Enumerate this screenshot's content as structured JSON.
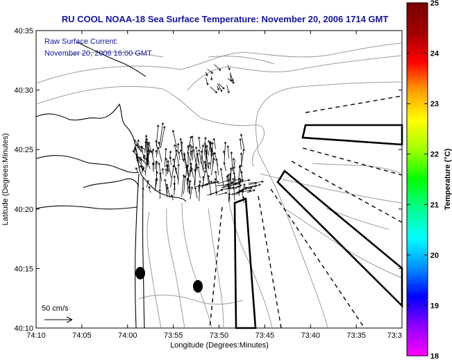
{
  "title": "RU COOL  NOAA-18  Sea Surface Temperature:  November 20, 2006 1714 GMT",
  "annotation": {
    "line1": "Raw Surface Current:",
    "line2": "November 20, 2006 16:00 GMT"
  },
  "scale_label": "50 cm/s",
  "xlabel": "Longitude (Degrees:Minutes)",
  "ylabel": "Latitude (Degrees:Minutes)",
  "x_ticks": [
    "74:10",
    "74:05",
    "74:00",
    "73:55",
    "73:50",
    "73:45",
    "73:40",
    "73:35",
    "73:3"
  ],
  "y_ticks": [
    "40:35",
    "40:30",
    "40:25",
    "40:20",
    "40:15",
    "40:10"
  ],
  "colorbar": {
    "label": "Temperature (°C)",
    "min": 18,
    "max": 25,
    "ticks": [
      "25",
      "24",
      "23",
      "22",
      "21",
      "20",
      "19",
      "18"
    ],
    "colors": [
      "#ff00ff",
      "#9000ff",
      "#0000ff",
      "#0090ff",
      "#00ffff",
      "#00ff90",
      "#00ff00",
      "#a0ff00",
      "#ffff00",
      "#ffa000",
      "#ff0000",
      "#a00000",
      "#7a0000"
    ]
  },
  "colors": {
    "title": "#1414a0",
    "contour": "#9a9a9a",
    "vectors": "#000000"
  }
}
